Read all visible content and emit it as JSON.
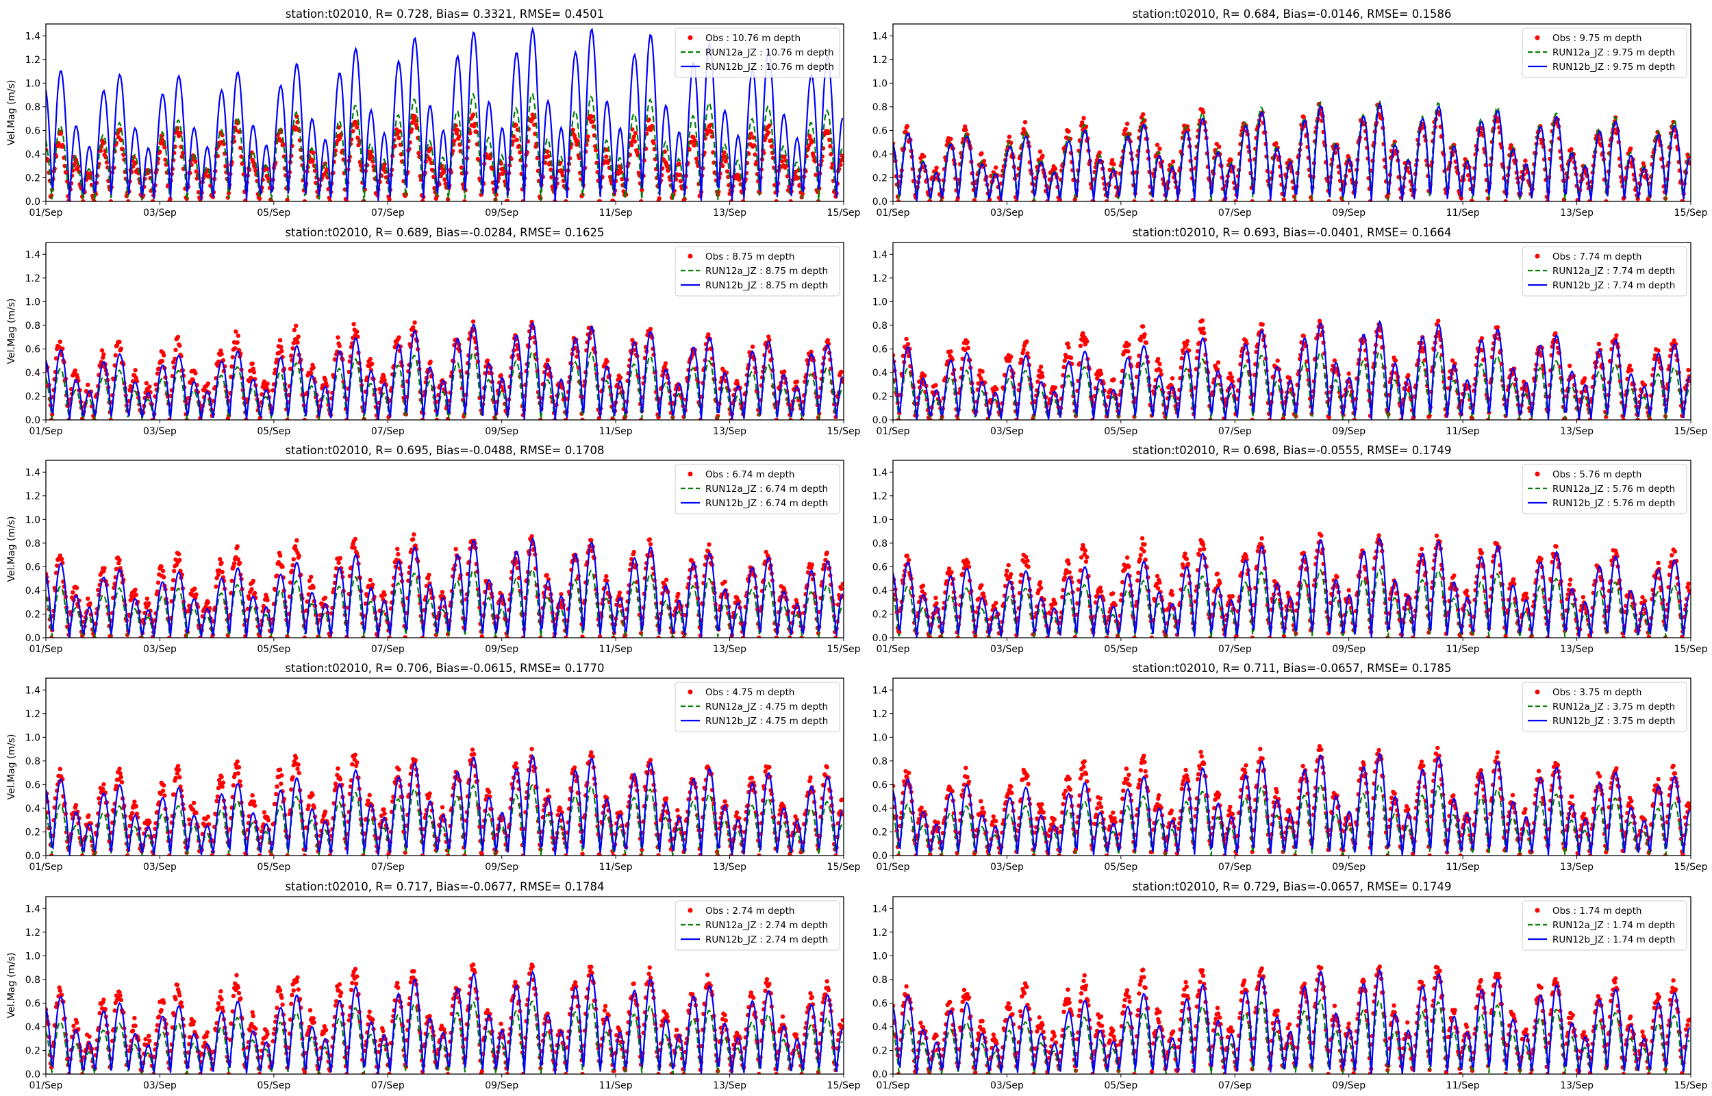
{
  "chart_data": [
    {
      "type": "line",
      "title": "station:t02010, R= 0.728, Bias= 0.3321, RMSE= 0.4501",
      "ylabel": "Vel.Mag (m/s)",
      "depth": "10.76",
      "legend": [
        "Obs : 10.76 m depth",
        "RUN12a_JZ : 10.76 m depth",
        "RUN12b_JZ : 10.76 m depth"
      ],
      "envelope_days": [
        1,
        3,
        5,
        7,
        9,
        11,
        13,
        15
      ],
      "series": [
        {
          "name": "Obs",
          "style": "red-dots",
          "peak": [
            0.55,
            0.6,
            0.68,
            0.72,
            0.72,
            0.7,
            0.65,
            0.6
          ]
        },
        {
          "name": "RUN12a_JZ",
          "style": "green-dashed",
          "peak": [
            0.65,
            0.7,
            0.75,
            0.87,
            0.95,
            0.9,
            0.85,
            0.78
          ]
        },
        {
          "name": "RUN12b_JZ",
          "style": "blue-solid",
          "peak": [
            1.15,
            1.08,
            1.15,
            1.4,
            1.5,
            1.5,
            1.35,
            1.25
          ]
        }
      ]
    },
    {
      "type": "line",
      "title": "station:t02010, R= 0.684, Bias=-0.0146, RMSE= 0.1586",
      "ylabel": "",
      "depth": "9.75",
      "legend": [
        "Obs : 9.75 m depth",
        "RUN12a_JZ : 9.75 m depth",
        "RUN12b_JZ : 9.75 m depth"
      ],
      "envelope_days": [
        1,
        3,
        5,
        7,
        9,
        11,
        13,
        15
      ],
      "series": [
        {
          "name": "Obs",
          "style": "red-dots",
          "peak": [
            0.6,
            0.62,
            0.72,
            0.78,
            0.82,
            0.78,
            0.7,
            0.65
          ]
        },
        {
          "name": "RUN12a_JZ",
          "style": "green-dashed",
          "peak": [
            0.6,
            0.6,
            0.7,
            0.8,
            0.88,
            0.85,
            0.75,
            0.7
          ]
        },
        {
          "name": "RUN12b_JZ",
          "style": "blue-solid",
          "peak": [
            0.6,
            0.55,
            0.65,
            0.75,
            0.86,
            0.82,
            0.72,
            0.65
          ]
        }
      ]
    },
    {
      "type": "line",
      "title": "station:t02010, R= 0.689, Bias=-0.0284, RMSE= 0.1625",
      "ylabel": "Vel.Mag (m/s)",
      "depth": "8.75",
      "legend": [
        "Obs : 8.75 m depth",
        "RUN12a_JZ : 8.75 m depth",
        "RUN12b_JZ : 8.75 m depth"
      ],
      "envelope_days": [
        1,
        3,
        5,
        7,
        9,
        11,
        13,
        15
      ],
      "series": [
        {
          "name": "Obs",
          "style": "red-dots",
          "peak": [
            0.65,
            0.65,
            0.75,
            0.8,
            0.8,
            0.78,
            0.7,
            0.65
          ]
        },
        {
          "name": "RUN12a_JZ",
          "style": "green-dashed",
          "peak": [
            0.45,
            0.42,
            0.48,
            0.55,
            0.6,
            0.58,
            0.5,
            0.45
          ]
        },
        {
          "name": "RUN12b_JZ",
          "style": "blue-solid",
          "peak": [
            0.62,
            0.55,
            0.62,
            0.75,
            0.86,
            0.8,
            0.7,
            0.65
          ]
        }
      ]
    },
    {
      "type": "line",
      "title": "station:t02010, R= 0.693, Bias=-0.0401, RMSE= 0.1664",
      "ylabel": "",
      "depth": "7.74",
      "legend": [
        "Obs : 7.74 m depth",
        "RUN12a_JZ : 7.74 m depth",
        "RUN12b_JZ : 7.74 m depth"
      ],
      "envelope_days": [
        1,
        3,
        5,
        7,
        9,
        11,
        13,
        15
      ],
      "series": [
        {
          "name": "Obs",
          "style": "red-dots",
          "peak": [
            0.65,
            0.65,
            0.78,
            0.82,
            0.82,
            0.8,
            0.72,
            0.68
          ]
        },
        {
          "name": "RUN12a_JZ",
          "style": "green-dashed",
          "peak": [
            0.45,
            0.42,
            0.48,
            0.55,
            0.6,
            0.58,
            0.5,
            0.45
          ]
        },
        {
          "name": "RUN12b_JZ",
          "style": "blue-solid",
          "peak": [
            0.65,
            0.55,
            0.62,
            0.75,
            0.87,
            0.82,
            0.72,
            0.65
          ]
        }
      ]
    },
    {
      "type": "line",
      "title": "station:t02010, R= 0.695, Bias=-0.0488, RMSE= 0.1708",
      "ylabel": "Vel.Mag (m/s)",
      "depth": "6.74",
      "legend": [
        "Obs : 6.74 m depth",
        "RUN12a_JZ : 6.74 m depth",
        "RUN12b_JZ : 6.74 m depth"
      ],
      "envelope_days": [
        1,
        3,
        5,
        7,
        9,
        11,
        13,
        15
      ],
      "series": [
        {
          "name": "Obs",
          "style": "red-dots",
          "peak": [
            0.68,
            0.68,
            0.8,
            0.84,
            0.84,
            0.82,
            0.74,
            0.7
          ]
        },
        {
          "name": "RUN12a_JZ",
          "style": "green-dashed",
          "peak": [
            0.45,
            0.42,
            0.48,
            0.55,
            0.6,
            0.58,
            0.5,
            0.45
          ]
        },
        {
          "name": "RUN12b_JZ",
          "style": "blue-solid",
          "peak": [
            0.66,
            0.56,
            0.63,
            0.76,
            0.88,
            0.82,
            0.72,
            0.66
          ]
        }
      ]
    },
    {
      "type": "line",
      "title": "station:t02010, R= 0.698, Bias=-0.0555, RMSE= 0.1749",
      "ylabel": "",
      "depth": "5.76",
      "legend": [
        "Obs : 5.76 m depth",
        "RUN12a_JZ : 5.76 m depth",
        "RUN12b_JZ : 5.76 m depth"
      ],
      "envelope_days": [
        1,
        3,
        5,
        7,
        9,
        11,
        13,
        15
      ],
      "series": [
        {
          "name": "Obs",
          "style": "red-dots",
          "peak": [
            0.68,
            0.68,
            0.8,
            0.85,
            0.86,
            0.84,
            0.75,
            0.7
          ]
        },
        {
          "name": "RUN12a_JZ",
          "style": "green-dashed",
          "peak": [
            0.45,
            0.42,
            0.48,
            0.56,
            0.6,
            0.58,
            0.5,
            0.45
          ]
        },
        {
          "name": "RUN12b_JZ",
          "style": "blue-solid",
          "peak": [
            0.67,
            0.57,
            0.64,
            0.77,
            0.88,
            0.83,
            0.73,
            0.67
          ]
        }
      ]
    },
    {
      "type": "line",
      "title": "station:t02010, R= 0.706, Bias=-0.0615, RMSE= 0.1770",
      "ylabel": "Vel.Mag (m/s)",
      "depth": "4.75",
      "legend": [
        "Obs : 4.75 m depth",
        "RUN12a_JZ : 4.75 m depth",
        "RUN12b_JZ : 4.75 m depth"
      ],
      "envelope_days": [
        1,
        3,
        5,
        7,
        9,
        11,
        13,
        15
      ],
      "series": [
        {
          "name": "Obs",
          "style": "red-dots",
          "peak": [
            0.7,
            0.7,
            0.82,
            0.86,
            0.88,
            0.86,
            0.76,
            0.72
          ]
        },
        {
          "name": "RUN12a_JZ",
          "style": "green-dashed",
          "peak": [
            0.45,
            0.42,
            0.5,
            0.57,
            0.62,
            0.6,
            0.52,
            0.46
          ]
        },
        {
          "name": "RUN12b_JZ",
          "style": "blue-solid",
          "peak": [
            0.68,
            0.58,
            0.65,
            0.78,
            0.88,
            0.84,
            0.74,
            0.68
          ]
        }
      ]
    },
    {
      "type": "line",
      "title": "station:t02010, R= 0.711, Bias=-0.0657, RMSE= 0.1785",
      "ylabel": "",
      "depth": "3.75",
      "legend": [
        "Obs : 3.75 m depth",
        "RUN12a_JZ : 3.75 m depth",
        "RUN12b_JZ : 3.75 m depth"
      ],
      "envelope_days": [
        1,
        3,
        5,
        7,
        9,
        11,
        13,
        15
      ],
      "series": [
        {
          "name": "Obs",
          "style": "red-dots",
          "peak": [
            0.7,
            0.7,
            0.82,
            0.87,
            0.9,
            0.88,
            0.78,
            0.72
          ]
        },
        {
          "name": "RUN12a_JZ",
          "style": "green-dashed",
          "peak": [
            0.45,
            0.42,
            0.5,
            0.58,
            0.63,
            0.6,
            0.52,
            0.46
          ]
        },
        {
          "name": "RUN12b_JZ",
          "style": "blue-solid",
          "peak": [
            0.68,
            0.58,
            0.66,
            0.8,
            0.9,
            0.85,
            0.75,
            0.68
          ]
        }
      ]
    },
    {
      "type": "line",
      "title": "station:t02010, R= 0.717, Bias=-0.0677, RMSE= 0.1784",
      "ylabel": "Vel.Mag (m/s)",
      "depth": "2.74",
      "legend": [
        "Obs : 2.74 m depth",
        "RUN12a_JZ : 2.74 m depth",
        "RUN12b_JZ : 2.74 m depth"
      ],
      "envelope_days": [
        1,
        3,
        5,
        7,
        9,
        11,
        13,
        15
      ],
      "series": [
        {
          "name": "Obs",
          "style": "red-dots",
          "peak": [
            0.72,
            0.72,
            0.84,
            0.88,
            0.9,
            0.9,
            0.8,
            0.74
          ]
        },
        {
          "name": "RUN12a_JZ",
          "style": "green-dashed",
          "peak": [
            0.46,
            0.43,
            0.52,
            0.6,
            0.64,
            0.62,
            0.54,
            0.48
          ]
        },
        {
          "name": "RUN12b_JZ",
          "style": "blue-solid",
          "peak": [
            0.69,
            0.58,
            0.66,
            0.8,
            0.9,
            0.86,
            0.75,
            0.68
          ]
        }
      ]
    },
    {
      "type": "line",
      "title": "station:t02010, R= 0.729, Bias=-0.0657, RMSE= 0.1749",
      "ylabel": "",
      "depth": "1.74",
      "legend": [
        "Obs : 1.74 m depth",
        "RUN12a_JZ : 1.74 m depth",
        "RUN12b_JZ : 1.74 m depth"
      ],
      "envelope_days": [
        1,
        3,
        5,
        7,
        9,
        11,
        13,
        15
      ],
      "series": [
        {
          "name": "Obs",
          "style": "red-dots",
          "peak": [
            0.72,
            0.72,
            0.85,
            0.9,
            0.92,
            0.92,
            0.82,
            0.74
          ]
        },
        {
          "name": "RUN12a_JZ",
          "style": "green-dashed",
          "peak": [
            0.47,
            0.44,
            0.52,
            0.62,
            0.65,
            0.62,
            0.55,
            0.5
          ]
        },
        {
          "name": "RUN12b_JZ",
          "style": "blue-solid",
          "peak": [
            0.7,
            0.58,
            0.67,
            0.82,
            0.92,
            0.86,
            0.76,
            0.7
          ]
        }
      ]
    }
  ],
  "axes": {
    "ylim": [
      0,
      1.5
    ],
    "yticks": [
      "0.0",
      "0.2",
      "0.4",
      "0.6",
      "0.8",
      "1.0",
      "1.2",
      "1.4"
    ],
    "xlim_days": [
      1,
      15
    ],
    "xticks": [
      "01/Sep",
      "03/Sep",
      "05/Sep",
      "07/Sep",
      "09/Sep",
      "11/Sep",
      "13/Sep",
      "15/Sep"
    ],
    "legend_placement": "top-right",
    "grid": false
  },
  "colors": {
    "obs": "#ff0000",
    "run12a": "#008000",
    "run12b": "#0000ff"
  }
}
